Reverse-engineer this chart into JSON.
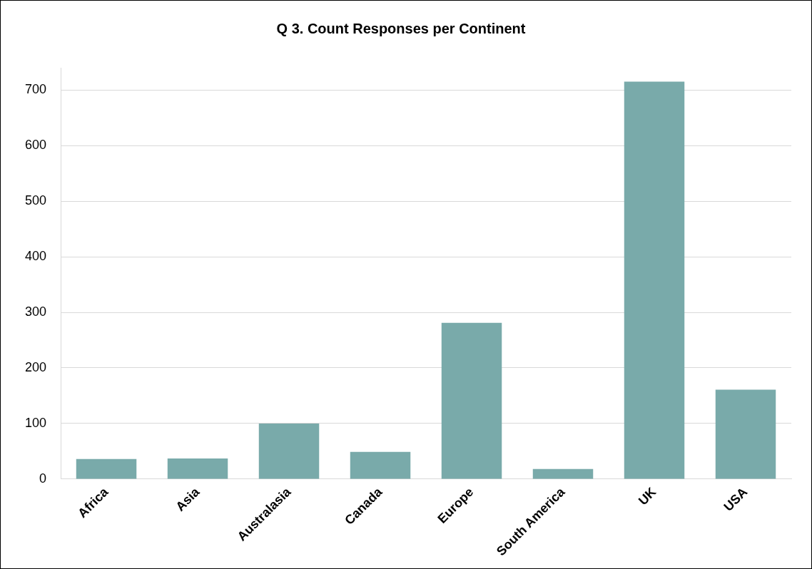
{
  "chart_data": {
    "type": "bar",
    "title": "Q 3. Count Responses per Continent",
    "categories": [
      "Africa",
      "Asia",
      "Australasia",
      "Canada",
      "Europe",
      "South America",
      "UK",
      "USA"
    ],
    "values": [
      36,
      37,
      100,
      49,
      281,
      18,
      715,
      161
    ],
    "color": "#79aaaa",
    "ylim": [
      0,
      740
    ],
    "yticks": [
      0,
      100,
      200,
      300,
      400,
      500,
      600,
      700
    ],
    "grid": "y",
    "legend": false
  }
}
